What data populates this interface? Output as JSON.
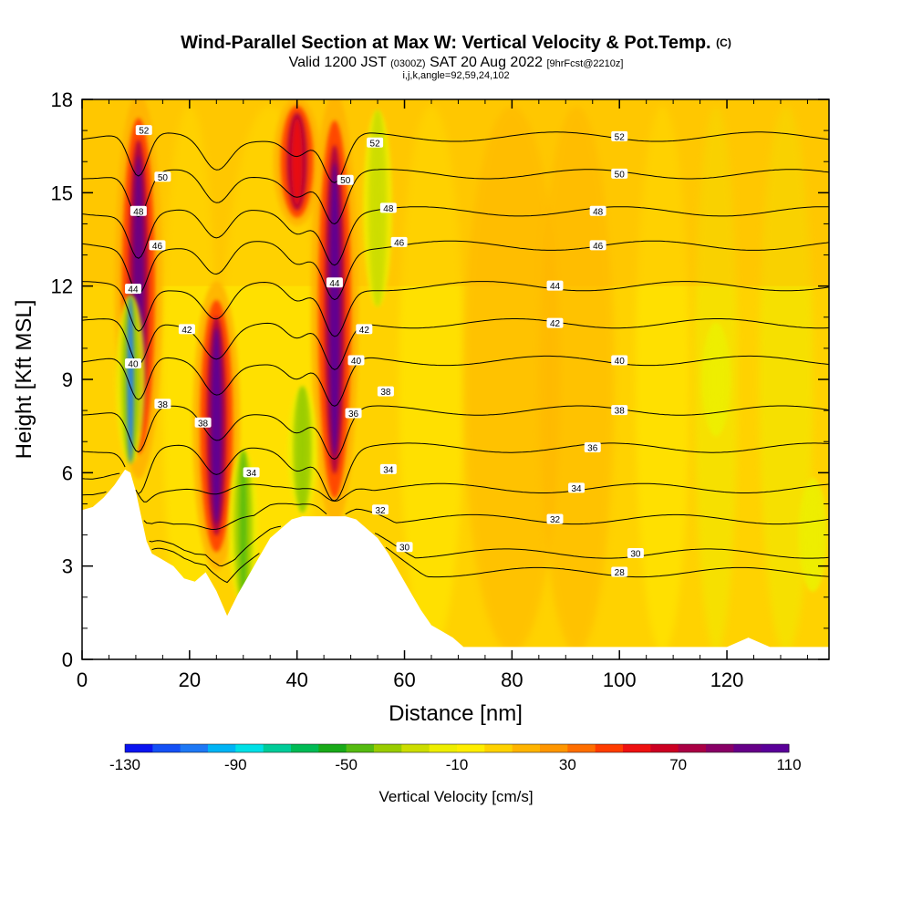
{
  "header": {
    "title": "Wind-Parallel Section at Max W: Vertical Velocity & Pot.Temp.",
    "copyright": "(C)",
    "valid_main": "Valid 1200 JST",
    "valid_z": "(0300Z)",
    "valid_date": "SAT 20 Aug 2022",
    "valid_fcst": "[9hrFcst@2210z]",
    "indices": "i,j,k,angle=92,59,24,102"
  },
  "chart_data": {
    "type": "heatmap",
    "title": "Wind-Parallel Section at Max W: Vertical Velocity & Pot.Temp.",
    "xlabel": "Distance [nm]",
    "ylabel": "Height [Kft MSL]",
    "xlim": [
      0,
      139
    ],
    "ylim": [
      0,
      18
    ],
    "x_ticks": [
      0,
      20,
      40,
      60,
      80,
      100,
      120
    ],
    "y_ticks": [
      0,
      3,
      6,
      9,
      12,
      15,
      18
    ],
    "colorbar": {
      "label": "Vertical Velocity [cm/s]",
      "range": [
        -130,
        110
      ],
      "step": 10,
      "tick_values": [
        -130,
        -90,
        -50,
        -10,
        30,
        70,
        110
      ],
      "colors": [
        "#0a14f0",
        "#1450f5",
        "#1e78f5",
        "#00b4f5",
        "#00e0e6",
        "#00cc99",
        "#00bb55",
        "#19aa19",
        "#55bb11",
        "#99cc00",
        "#ccdd00",
        "#eeee00",
        "#ffee00",
        "#ffd200",
        "#ffb400",
        "#ff9600",
        "#ff6e00",
        "#ff3c00",
        "#ee1111",
        "#cc0022",
        "#aa0044",
        "#880066",
        "#660088",
        "#5a0099"
      ]
    },
    "terrain_profile": {
      "distance_nm": [
        0,
        2,
        4,
        6,
        8,
        9,
        10,
        11,
        12,
        13,
        15,
        17,
        19,
        21,
        23,
        25,
        27,
        29,
        31,
        33,
        35,
        37,
        39,
        41,
        43,
        45,
        47,
        49,
        51,
        53,
        55,
        57,
        59,
        61,
        63,
        65,
        67,
        69,
        71,
        80,
        100,
        120,
        124,
        128,
        139
      ],
      "height_kft": [
        4.8,
        4.9,
        5.2,
        5.6,
        6.1,
        6.0,
        5.4,
        4.6,
        3.8,
        3.4,
        3.2,
        3.0,
        2.6,
        2.5,
        2.8,
        2.2,
        1.4,
        2.1,
        2.7,
        3.3,
        3.9,
        4.2,
        4.5,
        4.6,
        4.6,
        4.6,
        4.6,
        4.6,
        4.5,
        4.2,
        3.9,
        3.4,
        2.8,
        2.2,
        1.6,
        1.1,
        0.9,
        0.7,
        0.4,
        0.4,
        0.4,
        0.4,
        0.7,
        0.4,
        0.4
      ]
    },
    "updrafts": [
      {
        "distance_nm": 10.5,
        "height_kft": [
          6,
          18
        ],
        "max_cm_s": 100
      },
      {
        "distance_nm": 25,
        "height_kft": [
          3,
          12
        ],
        "max_cm_s": 110
      },
      {
        "distance_nm": 47,
        "height_kft": [
          4.5,
          18
        ],
        "max_cm_s": 110
      },
      {
        "distance_nm": 40,
        "height_kft": [
          14,
          18
        ],
        "max_cm_s": 60
      }
    ],
    "downdrafts": [
      {
        "distance_nm": 9,
        "height_kft": [
          6,
          12
        ],
        "min_cm_s": -110
      },
      {
        "distance_nm": 30,
        "height_kft": [
          1.5,
          7
        ],
        "min_cm_s": -50
      },
      {
        "distance_nm": 41,
        "height_kft": [
          4.5,
          9
        ],
        "min_cm_s": -40
      },
      {
        "distance_nm": 55,
        "height_kft": [
          11,
          18
        ],
        "min_cm_s": -30
      },
      {
        "distance_nm": 118,
        "height_kft": [
          7,
          11
        ],
        "min_cm_s": -20
      },
      {
        "distance_nm": 136,
        "height_kft": [
          2,
          6
        ],
        "min_cm_s": -20
      }
    ],
    "theta_contours": [
      {
        "label": "28",
        "label_distance_nm": 100,
        "height_kft": 2.8
      },
      {
        "label": "30",
        "label_distance_nm": 103,
        "height_kft": 3.4
      },
      {
        "label": "32",
        "label_distance_nm": 88,
        "height_kft": 4.5
      },
      {
        "label": "34",
        "label_distance_nm": 92,
        "height_kft": 5.5
      },
      {
        "label": "36",
        "label_distance_nm": 95,
        "height_kft": 6.8
      },
      {
        "label": "38",
        "label_distance_nm": 100,
        "height_kft": 8.0
      },
      {
        "label": "40",
        "label_distance_nm": 100,
        "height_kft": 9.6
      },
      {
        "label": "42",
        "label_distance_nm": 88,
        "height_kft": 10.8
      },
      {
        "label": "44",
        "label_distance_nm": 88,
        "height_kft": 12.0
      },
      {
        "label": "46",
        "label_distance_nm": 96,
        "height_kft": 13.3
      },
      {
        "label": "48",
        "label_distance_nm": 96,
        "height_kft": 14.4
      },
      {
        "label": "50",
        "label_distance_nm": 100,
        "height_kft": 15.6
      },
      {
        "label": "52",
        "label_distance_nm": 100,
        "height_kft": 16.8
      }
    ],
    "extra_contour_labels": [
      {
        "label": "52",
        "distance_nm": 11.5,
        "height_kft": 17.0
      },
      {
        "label": "50",
        "distance_nm": 15,
        "height_kft": 15.5
      },
      {
        "label": "48",
        "distance_nm": 10.5,
        "height_kft": 14.4
      },
      {
        "label": "46",
        "distance_nm": 14,
        "height_kft": 13.3
      },
      {
        "label": "44",
        "distance_nm": 9.5,
        "height_kft": 11.9
      },
      {
        "label": "42",
        "distance_nm": 19.5,
        "height_kft": 10.6
      },
      {
        "label": "40",
        "distance_nm": 9.5,
        "height_kft": 9.5
      },
      {
        "label": "38",
        "distance_nm": 15,
        "height_kft": 8.2
      },
      {
        "label": "38",
        "distance_nm": 22.5,
        "height_kft": 7.6
      },
      {
        "label": "34",
        "distance_nm": 31.5,
        "height_kft": 6.0
      },
      {
        "label": "52",
        "distance_nm": 54.5,
        "height_kft": 16.6
      },
      {
        "label": "50",
        "distance_nm": 49,
        "height_kft": 15.4
      },
      {
        "label": "48",
        "distance_nm": 57,
        "height_kft": 14.5
      },
      {
        "label": "46",
        "distance_nm": 59,
        "height_kft": 13.4
      },
      {
        "label": "44",
        "distance_nm": 47,
        "height_kft": 12.1
      },
      {
        "label": "42",
        "distance_nm": 52.5,
        "height_kft": 10.6
      },
      {
        "label": "40",
        "distance_nm": 51,
        "height_kft": 9.6
      },
      {
        "label": "38",
        "distance_nm": 56.5,
        "height_kft": 8.6
      },
      {
        "label": "36",
        "distance_nm": 50.5,
        "height_kft": 7.9
      },
      {
        "label": "34",
        "distance_nm": 57,
        "height_kft": 6.1
      },
      {
        "label": "32",
        "distance_nm": 55.5,
        "height_kft": 4.8
      },
      {
        "label": "30",
        "distance_nm": 60,
        "height_kft": 3.6
      }
    ]
  }
}
